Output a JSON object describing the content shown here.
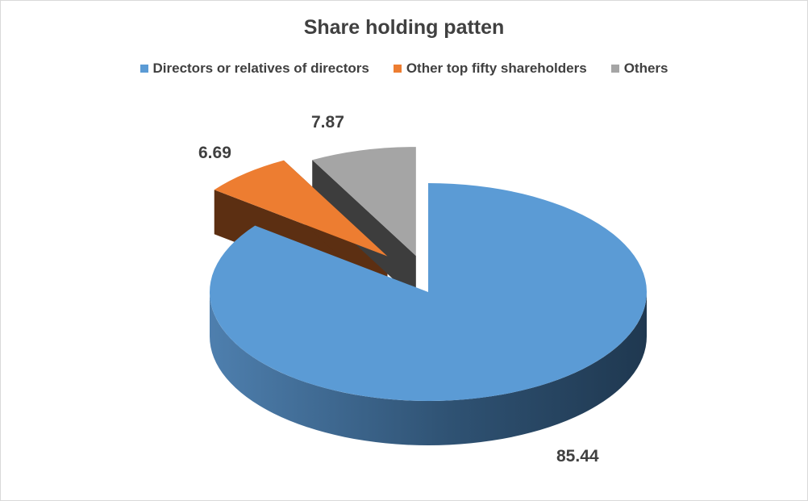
{
  "chart_data": {
    "type": "pie",
    "title": "Share holding patten",
    "legend_position": "top",
    "three_d": true,
    "exploded": true,
    "slices": [
      {
        "name": "Directors or relatives of directors",
        "value": 85.44,
        "color": "#5b9bd5"
      },
      {
        "name": "Other top fifty shareholders",
        "value": 6.69,
        "color": "#ed7d31"
      },
      {
        "name": "Others",
        "value": 7.87,
        "color": "#a5a5a5"
      }
    ]
  }
}
